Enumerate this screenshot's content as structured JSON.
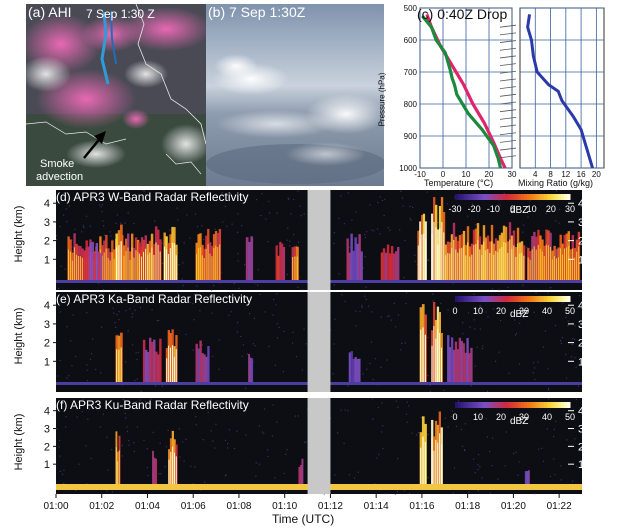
{
  "panels": {
    "a": {
      "label": "(a) AHI",
      "time": "7 Sep 1:30 Z",
      "annotation_line1": "Smoke",
      "annotation_line2": "advection"
    },
    "b": {
      "label": "(b) 7 Sep 1:30Z"
    },
    "c": {
      "label": "(c) 0:40Z Drop"
    }
  },
  "colors": {
    "temperature": "#e0236b",
    "dewpoint": "#1a8a3c",
    "mixing_ratio": "#2a3aa8",
    "radar_bg": "#0d0d14",
    "gap": "#c8c8c8"
  },
  "chart_data": [
    {
      "type": "line",
      "id": "sounding",
      "title": "(c) 0:40Z Drop",
      "xlabel": "Temperature (°C)",
      "ylabel": "Pressure (hPa)",
      "xlim": [
        -10,
        30
      ],
      "ylim": [
        1000,
        500
      ],
      "xticks": [
        -10,
        0,
        10,
        20,
        30
      ],
      "yticks": [
        500,
        600,
        700,
        800,
        900,
        1000
      ],
      "series": [
        {
          "role": "temperature",
          "x": [
            -7,
            -5,
            -1,
            4,
            9,
            13,
            18,
            22,
            25,
            27
          ],
          "y": [
            520,
            560,
            620,
            680,
            740,
            800,
            860,
            920,
            970,
            1000
          ]
        },
        {
          "role": "dewpoint",
          "x": [
            -9,
            -5,
            -3,
            1,
            3,
            4,
            5,
            6,
            11,
            17,
            22,
            24,
            25
          ],
          "y": [
            525,
            560,
            600,
            640,
            690,
            720,
            740,
            770,
            830,
            880,
            930,
            970,
            1000
          ]
        }
      ]
    },
    {
      "type": "line",
      "id": "mixing_ratio",
      "xlabel": "Mixing Ratio (g/kg)",
      "xlim": [
        0,
        22
      ],
      "ylim": [
        1000,
        500
      ],
      "xticks": [
        4,
        8,
        12,
        16,
        20
      ],
      "series": [
        {
          "role": "mixing_ratio",
          "x": [
            2.5,
            2,
            3,
            3.5,
            4.5,
            7.5,
            10,
            11,
            14,
            16,
            17,
            18,
            19
          ],
          "y": [
            520,
            560,
            600,
            650,
            700,
            740,
            760,
            790,
            840,
            880,
            920,
            960,
            1000
          ]
        }
      ]
    },
    {
      "type": "heatmap",
      "id": "w_band",
      "title": "(d) APR3 W-Band Radar Reflectivity",
      "ylabel": "Height (km)",
      "yticks": [
        1,
        2,
        3,
        4
      ],
      "colorbar_label": "dBZ",
      "colorbar_ticks": [
        -30,
        -20,
        -10,
        0,
        10,
        20,
        30
      ]
    },
    {
      "type": "heatmap",
      "id": "ka_band",
      "title": "(e) APR3 Ka-Band Radar Reflectivity",
      "ylabel": "Height (km)",
      "yticks": [
        1,
        2,
        3,
        4
      ],
      "colorbar_label": "dBZ",
      "colorbar_ticks": [
        0,
        10,
        20,
        30,
        40,
        50
      ]
    },
    {
      "type": "heatmap",
      "id": "ku_band",
      "title": "(f) APR3 Ku-Band Radar Reflectivity",
      "ylabel": "Height (km)",
      "xlabel": "Time (UTC)",
      "yticks": [
        1,
        2,
        3,
        4
      ],
      "xticks": [
        "01:00",
        "01:02",
        "01:04",
        "01:06",
        "01:08",
        "01:10",
        "01:12",
        "01:14",
        "01:16",
        "01:18",
        "01:20",
        "01:22"
      ],
      "colorbar_label": "dBZ",
      "colorbar_ticks": [
        0,
        10,
        20,
        30,
        40,
        50
      ]
    }
  ]
}
